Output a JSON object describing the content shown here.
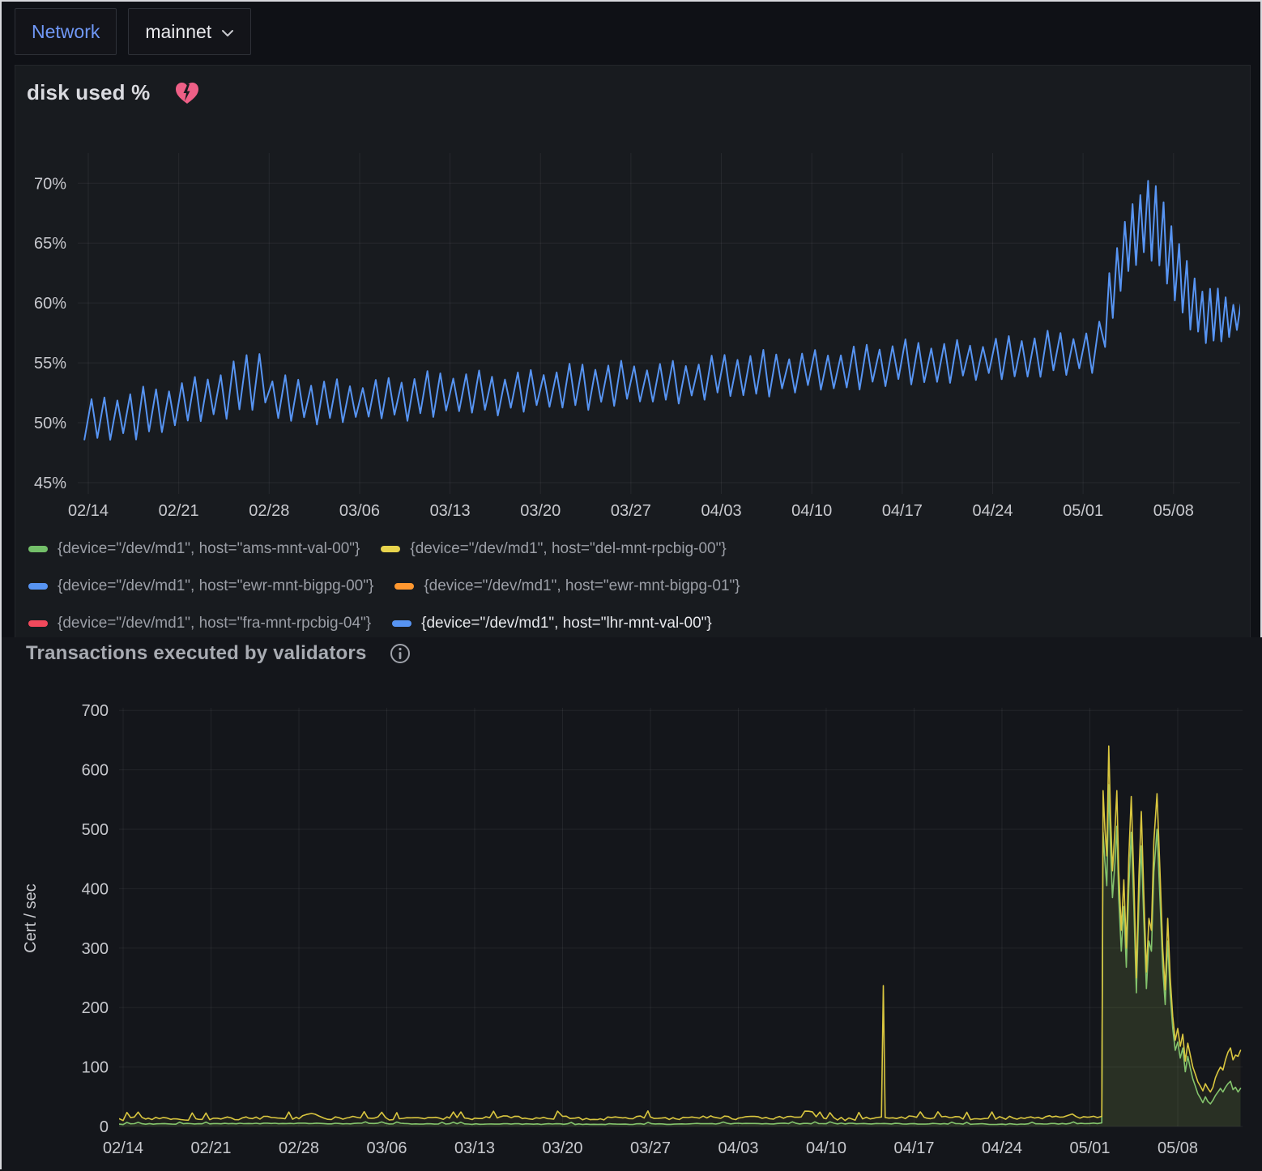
{
  "header": {
    "network_label": "Network",
    "network_value": "mainnet"
  },
  "panel1": {
    "title": "disk used %",
    "alert_icon": "heart-break-icon",
    "alert_color": "#ee5f86",
    "legend": {
      "items": [
        {
          "color": "#73BF69",
          "label": "{device=\"/dev/md1\", host=\"ams-mnt-val-00\"}",
          "bright": false
        },
        {
          "color": "#E8D44D",
          "label": "{device=\"/dev/md1\", host=\"del-mnt-rpcbig-00\"}",
          "bright": false
        },
        {
          "color": "#5794F2",
          "label": "{device=\"/dev/md1\", host=\"ewr-mnt-bigpg-00\"}",
          "bright": false
        },
        {
          "color": "#FF9830",
          "label": "{device=\"/dev/md1\", host=\"ewr-mnt-bigpg-01\"}",
          "bright": false
        },
        {
          "color": "#F2495C",
          "label": "{device=\"/dev/md1\", host=\"fra-mnt-rpcbig-04\"}",
          "bright": false
        },
        {
          "color": "#5794F2",
          "label": "{device=\"/dev/md1\", host=\"lhr-mnt-val-00\"}",
          "bright": true
        }
      ]
    },
    "chart_data": {
      "type": "line",
      "title": "disk used %",
      "unit": "%",
      "yticks": [
        45,
        50,
        55,
        60,
        65,
        70
      ],
      "ylim": [
        44,
        72.5
      ],
      "x_tick_labels": [
        "02/14",
        "02/21",
        "02/28",
        "03/06",
        "03/13",
        "03/20",
        "03/27",
        "04/03",
        "04/10",
        "04/17",
        "04/24",
        "05/01",
        "05/08"
      ],
      "x_tick_days": [
        0,
        7,
        14,
        21,
        28,
        35,
        42,
        49,
        56,
        63,
        70,
        77,
        84
      ],
      "x_range_days": [
        -0.3,
        89.2
      ],
      "visible_series": "{device=\"/dev/md1\", host=\"lhr-mnt-val-00\"}",
      "line_color": "#5794F2",
      "pattern": "daily-sawtooth",
      "sawtooth": {
        "period_days": 1,
        "fast_period_days": 0.6,
        "fast_start_day": 78.5,
        "peak_fraction": 0.55
      },
      "envelope_min": [
        [
          -0.3,
          48.6
        ],
        [
          0,
          48.4
        ],
        [
          4,
          49.0
        ],
        [
          7,
          49.8
        ],
        [
          10,
          50.5
        ],
        [
          13,
          51.4
        ],
        [
          13.9,
          51.6
        ],
        [
          14.2,
          50.2
        ],
        [
          21,
          50.3
        ],
        [
          28,
          50.8
        ],
        [
          35,
          51.2
        ],
        [
          42,
          51.7
        ],
        [
          49,
          52.2
        ],
        [
          56,
          52.8
        ],
        [
          63,
          53.3
        ],
        [
          70,
          53.8
        ],
        [
          77,
          54.2
        ],
        [
          78.3,
          54.6
        ],
        [
          79.2,
          58.5
        ],
        [
          80,
          61.5
        ],
        [
          81,
          63.2
        ],
        [
          82,
          64.2
        ],
        [
          83,
          63.0
        ],
        [
          84,
          60.5
        ],
        [
          85,
          58.2
        ],
        [
          86,
          57.2
        ],
        [
          87,
          56.8
        ],
        [
          88,
          57.0
        ],
        [
          89.2,
          57.6
        ]
      ],
      "envelope_max": [
        [
          -0.3,
          51.7
        ],
        [
          0,
          51.6
        ],
        [
          4,
          52.4
        ],
        [
          7,
          53.2
        ],
        [
          10,
          54.3
        ],
        [
          13,
          55.8
        ],
        [
          13.9,
          56.4
        ],
        [
          14.2,
          53.4
        ],
        [
          21,
          53.4
        ],
        [
          28,
          53.9
        ],
        [
          35,
          54.3
        ],
        [
          42,
          54.8
        ],
        [
          49,
          55.3
        ],
        [
          56,
          55.9
        ],
        [
          63,
          56.4
        ],
        [
          70,
          56.9
        ],
        [
          77,
          57.3
        ],
        [
          78.3,
          58.2
        ],
        [
          79.2,
          63.8
        ],
        [
          80,
          66.3
        ],
        [
          81,
          68.4
        ],
        [
          82,
          70.4
        ],
        [
          83,
          68.6
        ],
        [
          84,
          66.2
        ],
        [
          85,
          63.2
        ],
        [
          86,
          61.6
        ],
        [
          87,
          61.2
        ],
        [
          88,
          60.8
        ],
        [
          89.2,
          59.5
        ]
      ]
    }
  },
  "panel2": {
    "title": "Transactions executed by validators",
    "info_icon": "info-icon",
    "chart_data": {
      "type": "line",
      "ylabel": "Cert / sec",
      "yticks": [
        0,
        100,
        200,
        300,
        400,
        500,
        600,
        700
      ],
      "ylim": [
        0,
        715
      ],
      "x_tick_labels": [
        "02/14",
        "02/21",
        "02/28",
        "03/06",
        "03/13",
        "03/20",
        "03/27",
        "04/03",
        "04/10",
        "04/17",
        "04/24",
        "05/01",
        "05/08"
      ],
      "x_tick_days": [
        0,
        7,
        14,
        21,
        28,
        35,
        42,
        49,
        56,
        63,
        70,
        77,
        84
      ],
      "x_range_days": [
        -0.3,
        89.0
      ],
      "noise": {
        "below_value": 28,
        "step_days": 0.3
      },
      "series": [
        {
          "name": "green-series",
          "color": "#7EC36F",
          "fill_opacity": 0.1,
          "noise_amp": 0.8,
          "points": [
            [
              -0.3,
              4
            ],
            [
              10,
              5
            ],
            [
              20,
              5
            ],
            [
              30,
              4
            ],
            [
              40,
              4
            ],
            [
              50,
              5
            ],
            [
              60,
              5
            ],
            [
              70,
              4
            ],
            [
              77,
              5
            ],
            [
              77.95,
              6
            ],
            [
              78.05,
              495
            ],
            [
              78.2,
              445
            ],
            [
              78.35,
              405
            ],
            [
              78.5,
              575
            ],
            [
              78.65,
              465
            ],
            [
              78.8,
              385
            ],
            [
              79.0,
              445
            ],
            [
              79.15,
              505
            ],
            [
              79.3,
              385
            ],
            [
              79.5,
              295
            ],
            [
              79.7,
              370
            ],
            [
              79.9,
              268
            ],
            [
              80.1,
              400
            ],
            [
              80.3,
              495
            ],
            [
              80.5,
              370
            ],
            [
              80.7,
              225
            ],
            [
              80.9,
              375
            ],
            [
              81.1,
              472
            ],
            [
              81.3,
              348
            ],
            [
              81.5,
              232
            ],
            [
              81.7,
              312
            ],
            [
              81.9,
              295
            ],
            [
              82.1,
              428
            ],
            [
              82.35,
              500
            ],
            [
              82.6,
              375
            ],
            [
              82.8,
              268
            ],
            [
              83.0,
              205
            ],
            [
              83.2,
              312
            ],
            [
              83.4,
              222
            ],
            [
              83.6,
              165
            ],
            [
              83.8,
              128
            ],
            [
              84.0,
              142
            ],
            [
              84.2,
              115
            ],
            [
              84.4,
              132
            ],
            [
              84.6,
              92
            ],
            [
              84.8,
              118
            ],
            [
              85.0,
              98
            ],
            [
              85.2,
              80
            ],
            [
              85.4,
              68
            ],
            [
              85.6,
              55
            ],
            [
              85.8,
              48
            ],
            [
              86.0,
              40
            ],
            [
              86.2,
              50
            ],
            [
              86.4,
              42
            ],
            [
              86.6,
              38
            ],
            [
              86.8,
              44
            ],
            [
              87.0,
              52
            ],
            [
              87.2,
              58
            ],
            [
              87.4,
              64
            ],
            [
              87.6,
              58
            ],
            [
              87.8,
              66
            ],
            [
              88.0,
              72
            ],
            [
              88.2,
              76
            ],
            [
              88.4,
              62
            ],
            [
              88.6,
              66
            ],
            [
              88.8,
              58
            ],
            [
              89.0,
              64
            ]
          ]
        },
        {
          "name": "yellow-series",
          "color": "#D9C63F",
          "fill_opacity": 0.06,
          "noise_amp": 3.0,
          "points": [
            [
              -0.3,
              13
            ],
            [
              2,
              14
            ],
            [
              4,
              13
            ],
            [
              6,
              12
            ],
            [
              8,
              14
            ],
            [
              10,
              14
            ],
            [
              12,
              15
            ],
            [
              14,
              13
            ],
            [
              15,
              22
            ],
            [
              16,
              14
            ],
            [
              18,
              15
            ],
            [
              20,
              14
            ],
            [
              22,
              13
            ],
            [
              24,
              13
            ],
            [
              26,
              14
            ],
            [
              28,
              14
            ],
            [
              30,
              16
            ],
            [
              32,
              14
            ],
            [
              34,
              13
            ],
            [
              35,
              17
            ],
            [
              36,
              14
            ],
            [
              38,
              13
            ],
            [
              40,
              15
            ],
            [
              42,
              16
            ],
            [
              44,
              13
            ],
            [
              45,
              15
            ],
            [
              47,
              16
            ],
            [
              49,
              14
            ],
            [
              50,
              17
            ],
            [
              52,
              15
            ],
            [
              54,
              16
            ],
            [
              56,
              13
            ],
            [
              58,
              13
            ],
            [
              60,
              15
            ],
            [
              60.4,
              16
            ],
            [
              60.55,
              237
            ],
            [
              60.7,
              15
            ],
            [
              61,
              14
            ],
            [
              62,
              16
            ],
            [
              64,
              14
            ],
            [
              66,
              15
            ],
            [
              68,
              13
            ],
            [
              70,
              15
            ],
            [
              72,
              15
            ],
            [
              74,
              16
            ],
            [
              75.6,
              21
            ],
            [
              76.2,
              14
            ],
            [
              77,
              16
            ],
            [
              77.6,
              15
            ],
            [
              77.95,
              17
            ],
            [
              78.05,
              565
            ],
            [
              78.2,
              500
            ],
            [
              78.35,
              455
            ],
            [
              78.5,
              640
            ],
            [
              78.65,
              520
            ],
            [
              78.8,
              430
            ],
            [
              79.0,
              500
            ],
            [
              79.15,
              565
            ],
            [
              79.3,
              430
            ],
            [
              79.5,
              330
            ],
            [
              79.7,
              415
            ],
            [
              79.9,
              300
            ],
            [
              80.1,
              450
            ],
            [
              80.3,
              555
            ],
            [
              80.5,
              415
            ],
            [
              80.7,
              250
            ],
            [
              80.9,
              420
            ],
            [
              81.1,
              530
            ],
            [
              81.3,
              390
            ],
            [
              81.5,
              260
            ],
            [
              81.7,
              350
            ],
            [
              81.9,
              330
            ],
            [
              82.1,
              480
            ],
            [
              82.35,
              560
            ],
            [
              82.6,
              420
            ],
            [
              82.8,
              300
            ],
            [
              83.0,
              230
            ],
            [
              83.2,
              350
            ],
            [
              83.4,
              250
            ],
            [
              83.6,
              185
            ],
            [
              83.8,
              145
            ],
            [
              84.0,
              165
            ],
            [
              84.2,
              135
            ],
            [
              84.4,
              155
            ],
            [
              84.6,
              110
            ],
            [
              84.8,
              140
            ],
            [
              85.0,
              120
            ],
            [
              85.2,
              100
            ],
            [
              85.4,
              88
            ],
            [
              85.6,
              75
            ],
            [
              85.8,
              68
            ],
            [
              86.0,
              60
            ],
            [
              86.2,
              72
            ],
            [
              86.4,
              64
            ],
            [
              86.6,
              58
            ],
            [
              86.8,
              66
            ],
            [
              87.0,
              82
            ],
            [
              87.2,
              92
            ],
            [
              87.4,
              100
            ],
            [
              87.6,
              95
            ],
            [
              87.8,
              112
            ],
            [
              88.0,
              125
            ],
            [
              88.2,
              132
            ],
            [
              88.4,
              112
            ],
            [
              88.6,
              120
            ],
            [
              88.8,
              118
            ],
            [
              89.0,
              128
            ]
          ]
        }
      ]
    }
  }
}
